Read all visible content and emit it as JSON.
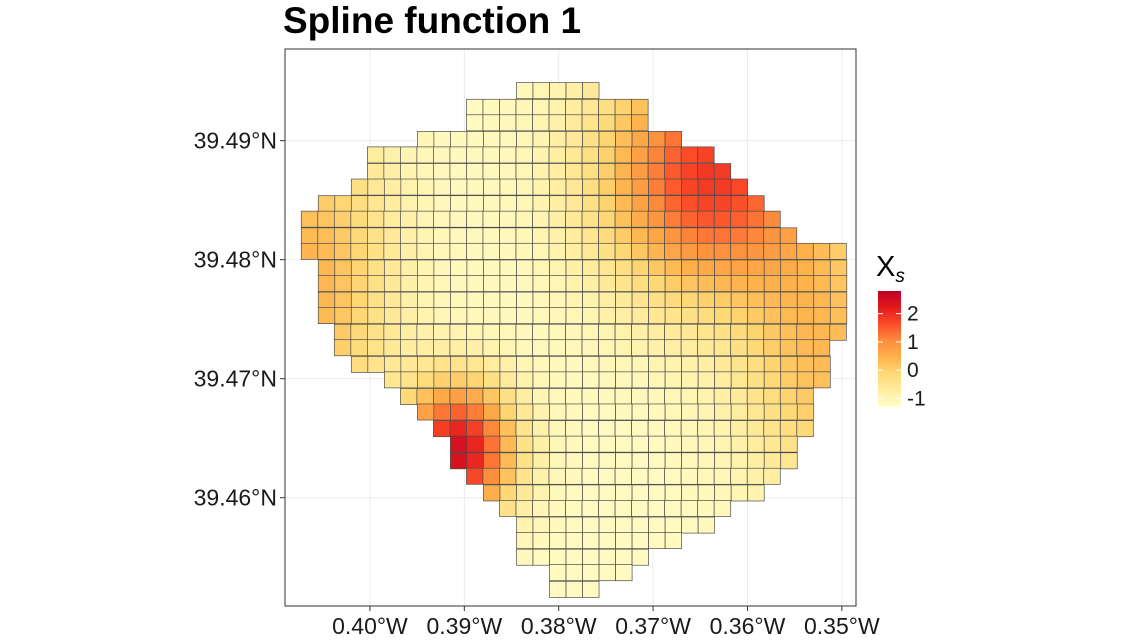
{
  "chart_data": {
    "type": "heatmap",
    "title": "Spline function 1",
    "xlabel": "",
    "ylabel": "",
    "x_ticks": [
      {
        "value": -0.4,
        "label": "0.40°W"
      },
      {
        "value": -0.39,
        "label": "0.39°W"
      },
      {
        "value": -0.38,
        "label": "0.38°W"
      },
      {
        "value": -0.37,
        "label": "0.37°W"
      },
      {
        "value": -0.36,
        "label": "0.36°W"
      },
      {
        "value": -0.35,
        "label": "0.35°W"
      }
    ],
    "y_ticks": [
      {
        "value": 39.46,
        "label": "39.46°N"
      },
      {
        "value": 39.47,
        "label": "39.47°N"
      },
      {
        "value": 39.48,
        "label": "39.48°N"
      },
      {
        "value": 39.49,
        "label": "39.49°N"
      }
    ],
    "xlim": [
      -0.409,
      -0.3485
    ],
    "ylim": [
      39.4509,
      39.4977
    ],
    "grid": true,
    "cell_size": [
      0.00175,
      0.00135
    ],
    "domain_rows": [
      {
        "lat": 39.4942,
        "lon_min": -0.3836,
        "lon_max": -0.3766
      },
      {
        "lat": 39.4928,
        "lon_min": -0.3889,
        "lon_max": -0.3713
      },
      {
        "lat": 39.4915,
        "lon_min": -0.3889,
        "lon_max": -0.3713
      },
      {
        "lat": 39.4901,
        "lon_min": -0.3941,
        "lon_max": -0.3678
      },
      {
        "lat": 39.4888,
        "lon_min": -0.3994,
        "lon_max": -0.3643
      },
      {
        "lat": 39.4874,
        "lon_min": -0.3994,
        "lon_max": -0.3625
      },
      {
        "lat": 39.4861,
        "lon_min": -0.4011,
        "lon_max": -0.3608
      },
      {
        "lat": 39.4847,
        "lon_min": -0.4046,
        "lon_max": -0.359
      },
      {
        "lat": 39.4834,
        "lon_min": -0.4064,
        "lon_max": -0.3573
      },
      {
        "lat": 39.482,
        "lon_min": -0.4064,
        "lon_max": -0.3555
      },
      {
        "lat": 39.4807,
        "lon_min": -0.4064,
        "lon_max": -0.3503
      },
      {
        "lat": 39.4793,
        "lon_min": -0.4046,
        "lon_max": -0.3503
      },
      {
        "lat": 39.478,
        "lon_min": -0.4046,
        "lon_max": -0.3503
      },
      {
        "lat": 39.4766,
        "lon_min": -0.4046,
        "lon_max": -0.3503
      },
      {
        "lat": 39.4753,
        "lon_min": -0.4046,
        "lon_max": -0.3503
      },
      {
        "lat": 39.4739,
        "lon_min": -0.4029,
        "lon_max": -0.3503
      },
      {
        "lat": 39.4726,
        "lon_min": -0.4029,
        "lon_max": -0.352
      },
      {
        "lat": 39.4712,
        "lon_min": -0.4011,
        "lon_max": -0.352
      },
      {
        "lat": 39.4699,
        "lon_min": -0.3976,
        "lon_max": -0.352
      },
      {
        "lat": 39.4685,
        "lon_min": -0.3959,
        "lon_max": -0.3538
      },
      {
        "lat": 39.4672,
        "lon_min": -0.3941,
        "lon_max": -0.3538
      },
      {
        "lat": 39.4658,
        "lon_min": -0.3924,
        "lon_max": -0.3538
      },
      {
        "lat": 39.4645,
        "lon_min": -0.3906,
        "lon_max": -0.3555
      },
      {
        "lat": 39.4631,
        "lon_min": -0.3906,
        "lon_max": -0.3555
      },
      {
        "lat": 39.4618,
        "lon_min": -0.3889,
        "lon_max": -0.3573
      },
      {
        "lat": 39.4604,
        "lon_min": -0.3871,
        "lon_max": -0.359
      },
      {
        "lat": 39.4591,
        "lon_min": -0.3854,
        "lon_max": -0.3625
      },
      {
        "lat": 39.4577,
        "lon_min": -0.3836,
        "lon_max": -0.3643
      },
      {
        "lat": 39.4564,
        "lon_min": -0.3836,
        "lon_max": -0.3678
      },
      {
        "lat": 39.455,
        "lon_min": -0.3836,
        "lon_max": -0.3713
      },
      {
        "lat": 39.4537,
        "lon_min": -0.3801,
        "lon_max": -0.3731
      },
      {
        "lat": 39.4523,
        "lon_min": -0.3801,
        "lon_max": -0.3766
      }
    ],
    "value_model": {
      "type": "spline-surface",
      "description_of_pattern": "low (≈-1) along central diagonal, high (≈2.5) at north-east and south-west corners",
      "terms": [
        {
          "center": [
            -0.3906,
            39.4639
          ],
          "spread": [
            0.004,
            0.004
          ],
          "amplitude": 3.6
        },
        {
          "center": [
            -0.364,
            39.487
          ],
          "spread": [
            0.008,
            0.007
          ],
          "amplitude": 3.0
        },
        {
          "center": [
            -0.4064,
            39.478
          ],
          "spread": [
            0.006,
            0.01
          ],
          "amplitude": 1.6
        },
        {
          "center": [
            -0.352,
            39.472
          ],
          "spread": [
            0.006,
            0.008
          ],
          "amplitude": 1.4
        }
      ],
      "base": -1.15
    },
    "legend": {
      "title_main": "X",
      "title_sub": "s",
      "placement": "right",
      "range": [
        -1.3,
        2.8
      ],
      "ticks": [
        {
          "value": 2,
          "label": "2"
        },
        {
          "value": 1,
          "label": "1"
        },
        {
          "value": 0,
          "label": "0"
        },
        {
          "value": -1,
          "label": "-1"
        }
      ]
    },
    "colors": {
      "scale": [
        "#FFFFCC",
        "#FFEDA0",
        "#FED976",
        "#FEB24C",
        "#FD8D3C",
        "#FC4E2A",
        "#E31A1C",
        "#BD0026"
      ],
      "cell_stroke": "#4d4d4d",
      "grid": "#ebebeb",
      "panel_border": "#333333",
      "background": "#ffffff"
    }
  }
}
